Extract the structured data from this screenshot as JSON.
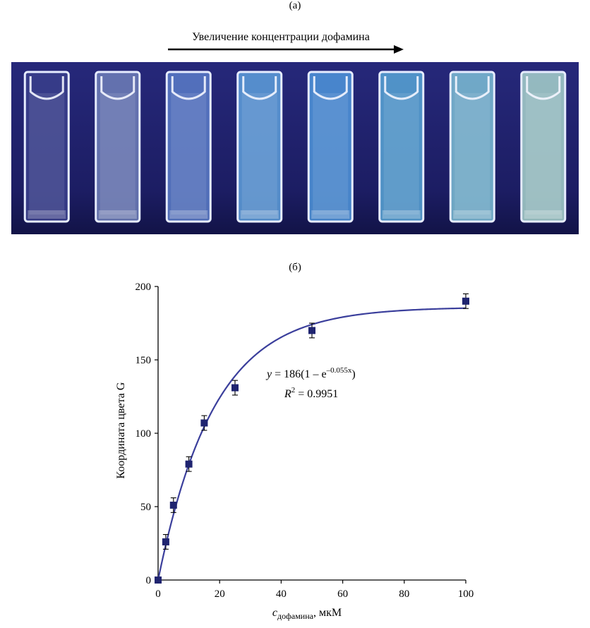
{
  "figure": {
    "panel_a_label": "(а)",
    "panel_b_label": "(б)",
    "arrow_caption": "Увеличение концентрации дофамина",
    "photo": {
      "background_color": "#1e1f6e",
      "cuvette_count": 8,
      "cuvette_colors": [
        "#3a3f8c",
        "#6f7fb8",
        "#5a7cc8",
        "#5ea0dc",
        "#4f97dc",
        "#58a6d6",
        "#7ec0d6",
        "#a8d4cc"
      ]
    }
  },
  "chart_data": {
    "type": "scatter",
    "xlabel_main": "c",
    "xlabel_sub": "дофамина",
    "xlabel_unit": ", мкМ",
    "ylabel": "Координата цвета G",
    "xlim": [
      0,
      100
    ],
    "ylim": [
      0,
      200
    ],
    "x_ticks": [
      0,
      20,
      40,
      60,
      80,
      100
    ],
    "y_ticks": [
      0,
      50,
      100,
      150,
      200
    ],
    "grid": false,
    "marker_color": "#1f2470",
    "curve_color": "#3b3f9c",
    "series": [
      {
        "x": [
          0,
          2.5,
          5,
          10,
          15,
          25,
          50,
          100
        ],
        "y": [
          0,
          26,
          51,
          79,
          107,
          131,
          170,
          190
        ],
        "error": [
          0,
          5,
          5,
          5,
          5,
          5,
          5,
          5
        ]
      }
    ],
    "fit": {
      "amplitude": 186,
      "rate": 0.055
    },
    "annotation": {
      "eq_lhs": "y",
      "eq_mid": " = 186(1 – e",
      "eq_exp": "–0.055x",
      "eq_end": ")",
      "r2_base": "R",
      "r2_sup": "2",
      "r2_value": " = 0.9951"
    }
  }
}
